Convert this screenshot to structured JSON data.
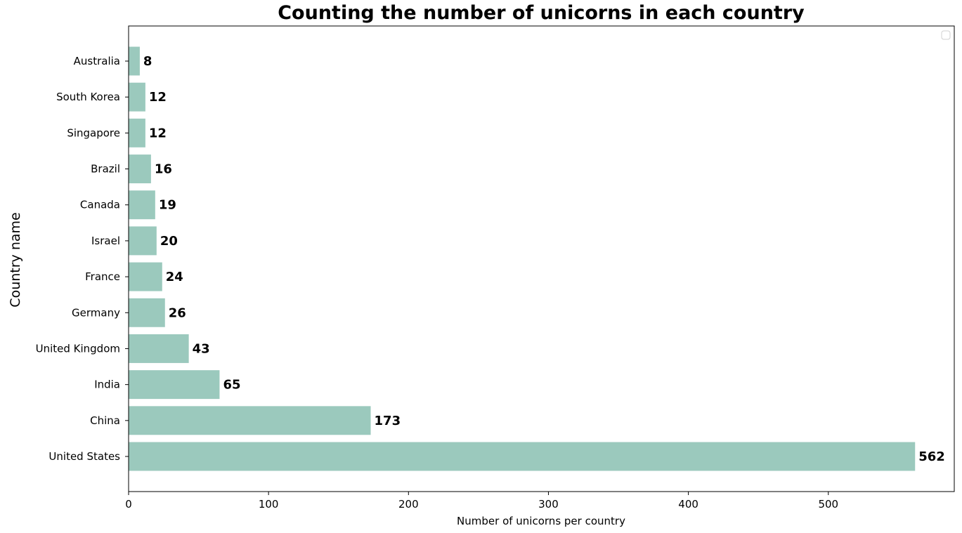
{
  "chart_data": {
    "type": "bar",
    "orientation": "horizontal",
    "title": "Counting the number of unicorns in each country",
    "xlabel": "Number of unicorns per country",
    "ylabel": "Country name",
    "categories": [
      "United States",
      "China",
      "India",
      "United Kingdom",
      "Germany",
      "France",
      "Israel",
      "Canada",
      "Brazil",
      "Singapore",
      "South Korea",
      "Australia"
    ],
    "values": [
      562,
      173,
      65,
      43,
      26,
      24,
      20,
      19,
      16,
      12,
      12,
      8
    ],
    "xlim": [
      0,
      590
    ],
    "xticks": [
      0,
      100,
      200,
      300,
      400,
      500
    ],
    "bar_color": "#9bc9bd",
    "grid": false,
    "legend": {
      "placement": "top-right",
      "entries": []
    }
  }
}
